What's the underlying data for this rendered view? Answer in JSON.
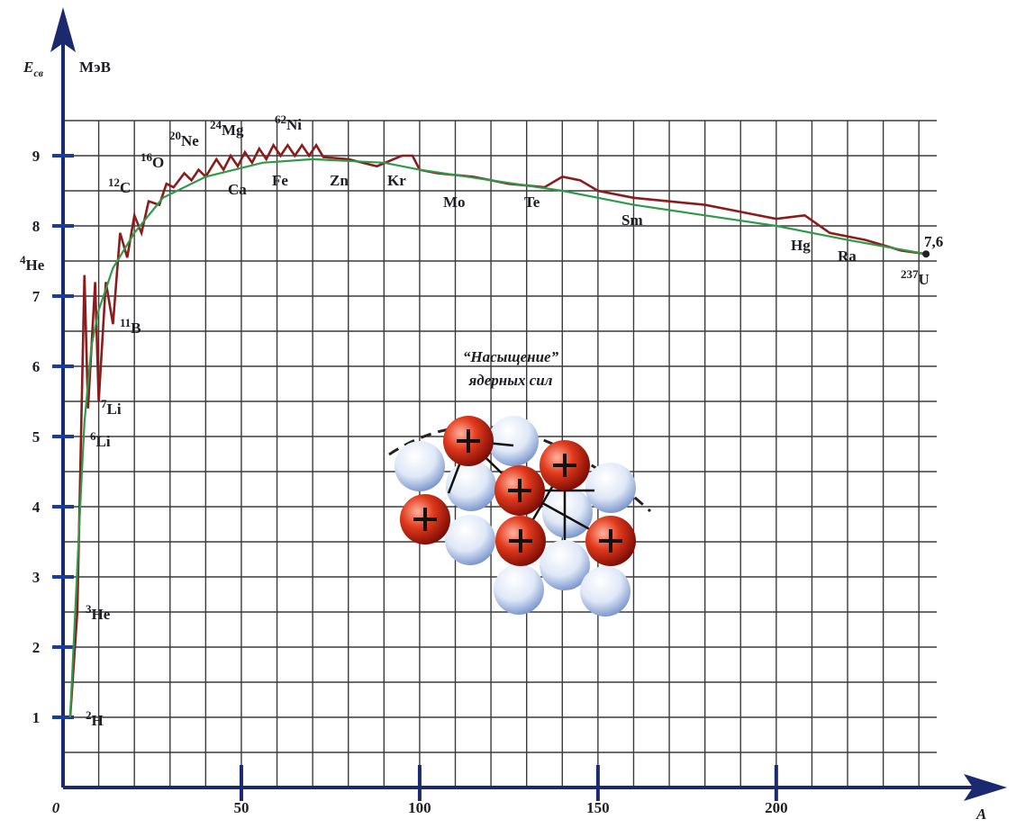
{
  "chart_data": {
    "type": "line",
    "y_label": "E",
    "y_label_sub": "св",
    "y_unit": "МэВ",
    "x_label": "A",
    "xlim": [
      0,
      245
    ],
    "ylim": [
      0,
      9.5
    ],
    "xticks": [
      0,
      50,
      100,
      150,
      200
    ],
    "yticks": [
      1,
      2,
      3,
      4,
      5,
      6,
      7,
      8,
      9
    ],
    "grid_step_x": 10,
    "grid_step_y": 0.5,
    "series": [
      {
        "color": "#8b1c1c",
        "x": [
          2,
          4,
          6,
          7,
          9,
          10,
          12,
          14,
          16,
          18,
          20,
          22,
          24,
          27,
          29,
          31,
          34,
          36,
          38,
          40,
          43,
          45,
          47,
          49,
          51,
          53,
          55,
          57,
          59,
          61,
          63,
          65,
          67,
          69,
          71,
          73,
          80,
          88,
          95,
          98,
          100,
          105,
          115,
          125,
          135,
          140,
          145,
          150,
          160,
          170,
          180,
          190,
          200,
          208,
          215,
          225,
          235,
          242
        ],
        "values": [
          1.0,
          2.5,
          7.3,
          5.4,
          7.2,
          5.5,
          7.2,
          6.6,
          7.9,
          7.55,
          8.15,
          7.9,
          8.35,
          8.3,
          8.6,
          8.55,
          8.75,
          8.65,
          8.8,
          8.7,
          8.95,
          8.8,
          9.0,
          8.85,
          9.05,
          8.9,
          9.1,
          8.95,
          9.15,
          9.0,
          9.15,
          9.0,
          9.15,
          9.0,
          9.15,
          8.98,
          8.95,
          8.85,
          9.0,
          9.0,
          8.8,
          8.75,
          8.7,
          8.6,
          8.55,
          8.7,
          8.65,
          8.5,
          8.4,
          8.35,
          8.3,
          8.2,
          8.1,
          8.15,
          7.9,
          7.8,
          7.65,
          7.6
        ]
      },
      {
        "color": "#2e9a4a",
        "x": [
          2,
          5,
          6,
          8,
          10,
          14,
          20,
          28,
          40,
          56,
          70,
          90,
          100,
          120,
          140,
          160,
          180,
          200,
          220,
          242
        ],
        "values": [
          1.0,
          4.2,
          5.2,
          6.3,
          6.8,
          7.4,
          7.9,
          8.4,
          8.7,
          8.9,
          8.95,
          8.9,
          8.8,
          8.65,
          8.5,
          8.3,
          8.15,
          8.0,
          7.8,
          7.6
        ]
      }
    ],
    "end_label": {
      "value": 7.6,
      "label": "7,6"
    },
    "annotations": [
      {
        "mass": "4",
        "symbol": "He"
      },
      {
        "mass": "3",
        "symbol": "He"
      },
      {
        "mass": "2",
        "symbol": "H"
      },
      {
        "mass": "6",
        "symbol": "Li"
      },
      {
        "mass": "7",
        "symbol": "Li"
      },
      {
        "mass": "11",
        "symbol": "B"
      },
      {
        "mass": "12",
        "symbol": "C"
      },
      {
        "mass": "16",
        "symbol": "O"
      },
      {
        "mass": "20",
        "symbol": "Ne"
      },
      {
        "mass": "24",
        "symbol": "Mg"
      },
      {
        "symbol": "Ca"
      },
      {
        "mass": "62",
        "symbol": "Ni"
      },
      {
        "symbol": "Fe"
      },
      {
        "symbol": "Zn"
      },
      {
        "symbol": "Kr"
      },
      {
        "symbol": "Mo"
      },
      {
        "symbol": "Te"
      },
      {
        "symbol": "Sm"
      },
      {
        "symbol": "Hg"
      },
      {
        "symbol": "Ra"
      },
      {
        "mass": "237",
        "symbol": "U"
      }
    ],
    "inset_title": [
      "“Насыщение”",
      "ядерных сил"
    ]
  }
}
